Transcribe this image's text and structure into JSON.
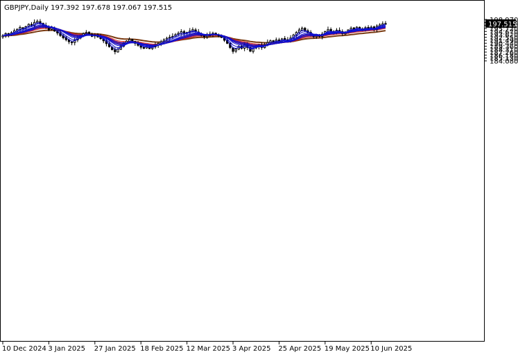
{
  "chart_data": {
    "type": "candlestick",
    "symbol_info": "GBPJPY,Daily  197.392 197.678 197.067 197.515",
    "last_price": "197.515",
    "ylim": [
      84.08,
      198.97
    ],
    "y_ticks": [
      "198.970",
      "197.850",
      "196.800",
      "195.720",
      "194.670",
      "193.620",
      "192.550",
      "191.490",
      "190.440",
      "189.360",
      "188.310",
      "187.260",
      "186.180",
      "185.130",
      "184.080"
    ],
    "y_tick_values": [
      198.97,
      197.85,
      196.8,
      195.72,
      194.67,
      193.62,
      192.55,
      191.49,
      190.44,
      189.36,
      188.31,
      187.26,
      186.18,
      185.13,
      184.08
    ],
    "x_ticks": [
      "10 Dec 2024",
      "3 Jan 2025",
      "27 Jan 2025",
      "18 Feb 2025",
      "12 Mar 2025",
      "3 Apr 2025",
      "25 Apr 2025",
      "19 May 2025",
      "10 Jun 2025"
    ],
    "x_tick_index": [
      0,
      16,
      32,
      48,
      64,
      80,
      96,
      112,
      128
    ],
    "closes": [
      193.1,
      193.9,
      193.5,
      194.2,
      194.9,
      195.4,
      196.1,
      195.6,
      196.4,
      197.2,
      196.8,
      197.9,
      198.3,
      197.6,
      196.9,
      196.2,
      195.3,
      195.9,
      194.8,
      194.1,
      193.2,
      192.4,
      191.7,
      191.0,
      190.6,
      191.5,
      192.3,
      193.2,
      193.9,
      194.3,
      193.6,
      192.9,
      193.4,
      192.7,
      192.1,
      191.3,
      190.3,
      189.2,
      188.1,
      187.4,
      188.3,
      189.4,
      190.5,
      191.2,
      191.8,
      191.1,
      190.4,
      189.7,
      189.0,
      188.6,
      189.2,
      188.5,
      189.1,
      189.8,
      190.4,
      191.0,
      191.6,
      192.2,
      192.6,
      192.9,
      193.5,
      194.0,
      194.6,
      193.9,
      194.3,
      194.8,
      195.3,
      194.6,
      193.9,
      193.2,
      192.8,
      193.2,
      193.7,
      194.0,
      193.5,
      193.1,
      192.5,
      191.5,
      190.4,
      188.9,
      187.5,
      188.4,
      189.3,
      188.6,
      189.8,
      188.9,
      187.6,
      188.6,
      189.3,
      189.8,
      188.9,
      190.0,
      190.7,
      191.3,
      190.9,
      191.6,
      191.1,
      192.0,
      191.7,
      191.3,
      192.3,
      193.4,
      194.3,
      195.2,
      195.8,
      194.9,
      194.3,
      193.5,
      192.8,
      193.6,
      192.9,
      193.7,
      194.6,
      195.3,
      194.8,
      194.3,
      195.1,
      194.7,
      193.9,
      194.4,
      195.2,
      195.8,
      195.4,
      196.2,
      195.7,
      195.2,
      196.0,
      195.6,
      196.2,
      195.4,
      196.6,
      197.0,
      197.4,
      197.515
    ],
    "ma_fast_periods": [
      3,
      5,
      8,
      10,
      12,
      15
    ],
    "ma_slow_periods": [
      30,
      35,
      40,
      45,
      50,
      60
    ],
    "ma_long_period": 100,
    "colors": {
      "bull_candle": "#000000",
      "bear_candle": "#000000",
      "ma_fast": "#1010d0",
      "ma_slow": "#d01818",
      "ma_long": "#7a3a10",
      "price_label_bg": "#000000",
      "price_label_text": "#ffffff",
      "grid": "#000000"
    },
    "grid": false
  }
}
